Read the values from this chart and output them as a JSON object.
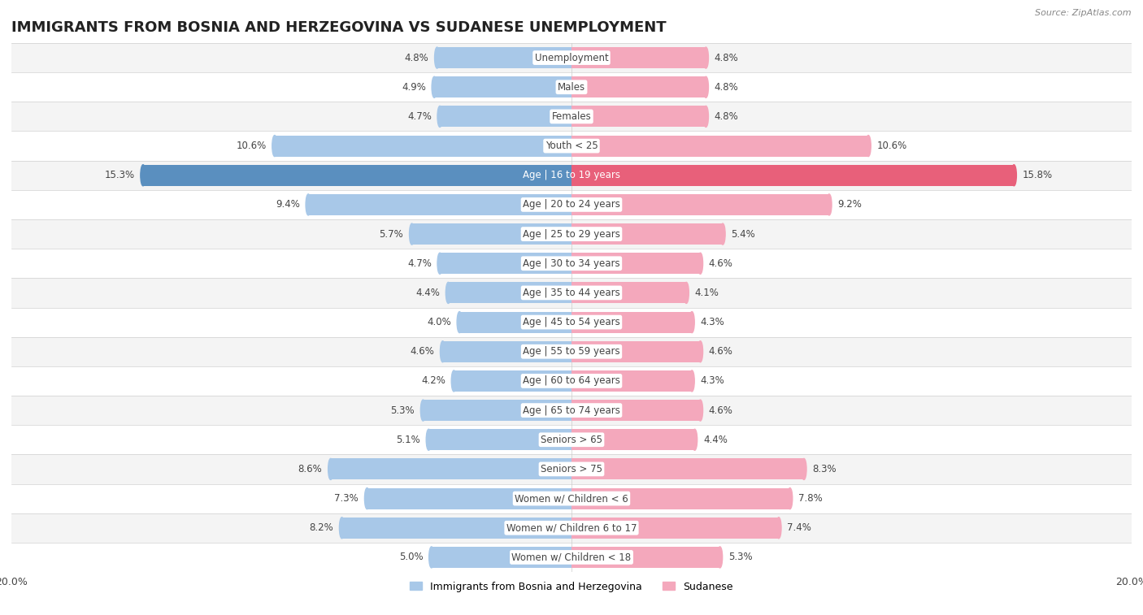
{
  "title": "IMMIGRANTS FROM BOSNIA AND HERZEGOVINA VS SUDANESE UNEMPLOYMENT",
  "source": "Source: ZipAtlas.com",
  "categories": [
    "Unemployment",
    "Males",
    "Females",
    "Youth < 25",
    "Age | 16 to 19 years",
    "Age | 20 to 24 years",
    "Age | 25 to 29 years",
    "Age | 30 to 34 years",
    "Age | 35 to 44 years",
    "Age | 45 to 54 years",
    "Age | 55 to 59 years",
    "Age | 60 to 64 years",
    "Age | 65 to 74 years",
    "Seniors > 65",
    "Seniors > 75",
    "Women w/ Children < 6",
    "Women w/ Children 6 to 17",
    "Women w/ Children < 18"
  ],
  "bosnia_values": [
    4.8,
    4.9,
    4.7,
    10.6,
    15.3,
    9.4,
    5.7,
    4.7,
    4.4,
    4.0,
    4.6,
    4.2,
    5.3,
    5.1,
    8.6,
    7.3,
    8.2,
    5.0
  ],
  "sudanese_values": [
    4.8,
    4.8,
    4.8,
    10.6,
    15.8,
    9.2,
    5.4,
    4.6,
    4.1,
    4.3,
    4.6,
    4.3,
    4.6,
    4.4,
    8.3,
    7.8,
    7.4,
    5.3
  ],
  "bosnia_color": "#a8c8e8",
  "sudanese_color": "#f4a8bc",
  "highlight_bosnia_color": "#5a8fbf",
  "highlight_sudanese_color": "#e8607a",
  "row_bg_light": "#f4f4f4",
  "row_bg_dark": "#e8e8e8",
  "row_separator": "#d0d0d0",
  "xlim": 20.0,
  "title_fontsize": 13,
  "label_fontsize": 8.5,
  "value_fontsize": 8.5,
  "legend_fontsize": 9,
  "source_fontsize": 8,
  "highlight_idx": 4
}
